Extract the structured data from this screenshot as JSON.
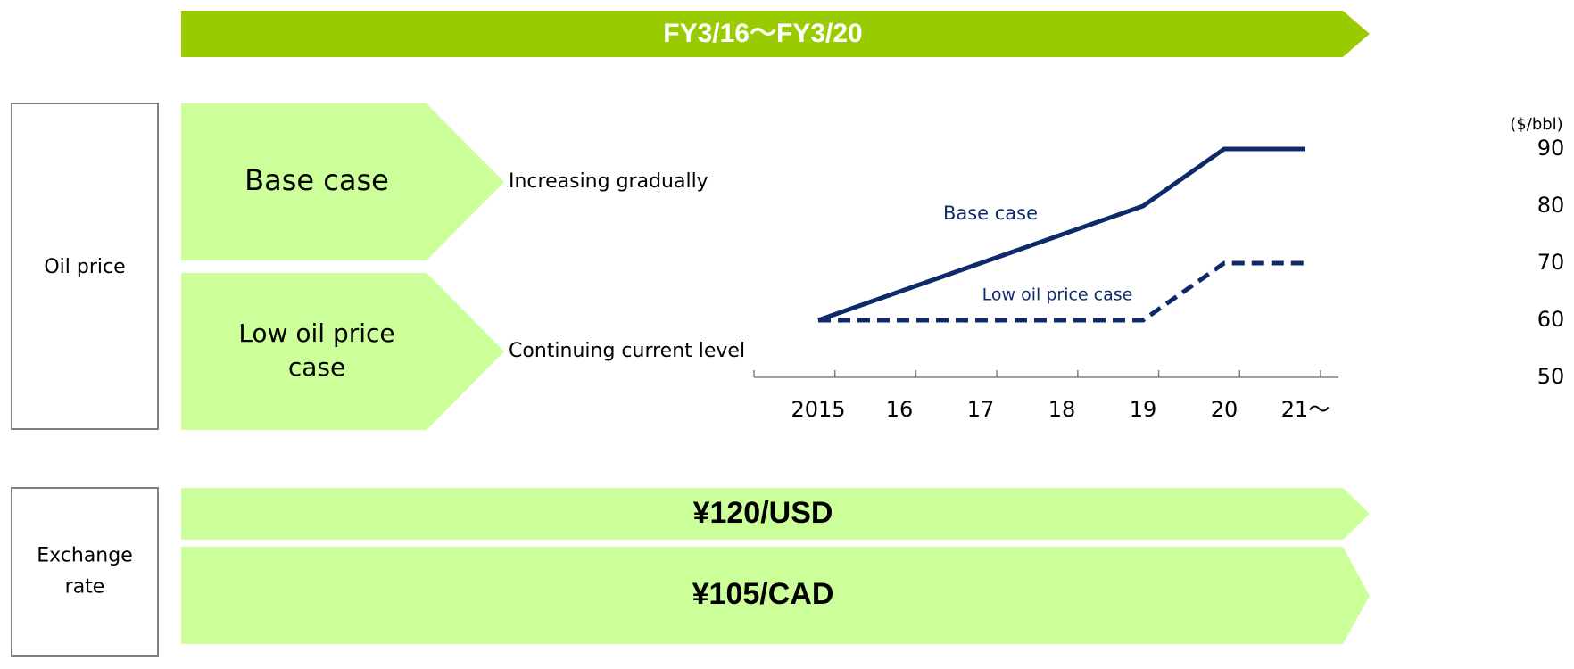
{
  "banner": "FY3/16～FY3/20",
  "oil_price": {
    "label": "Oil price",
    "cases": [
      {
        "name_lines": [
          "Base case"
        ],
        "description": "Increasing gradually"
      },
      {
        "name_lines": [
          "Low oil price",
          "case"
        ],
        "description": "Continuing current level"
      }
    ]
  },
  "chart_data": {
    "type": "line",
    "categories": [
      "2015",
      "16",
      "17",
      "18",
      "19",
      "20",
      "21～"
    ],
    "y_unit": "($/bbl)",
    "ylim": [
      50,
      90
    ],
    "yticks": [
      50,
      60,
      70,
      80,
      90
    ],
    "y_axis_side": "right",
    "grid": false,
    "series": [
      {
        "name": "Base case",
        "color": "#0f2a6b",
        "line_style": "solid",
        "values": [
          60,
          65,
          70,
          75,
          80,
          90,
          90
        ]
      },
      {
        "name": "Low oil price case",
        "color": "#0f2a6b",
        "line_style": "dashed",
        "values": [
          60,
          60,
          60,
          60,
          60,
          70,
          70
        ]
      }
    ]
  },
  "exchange_rate": {
    "label_lines": [
      "Exchange",
      "rate"
    ],
    "rates": [
      "¥120/USD",
      "¥105/CAD"
    ]
  }
}
